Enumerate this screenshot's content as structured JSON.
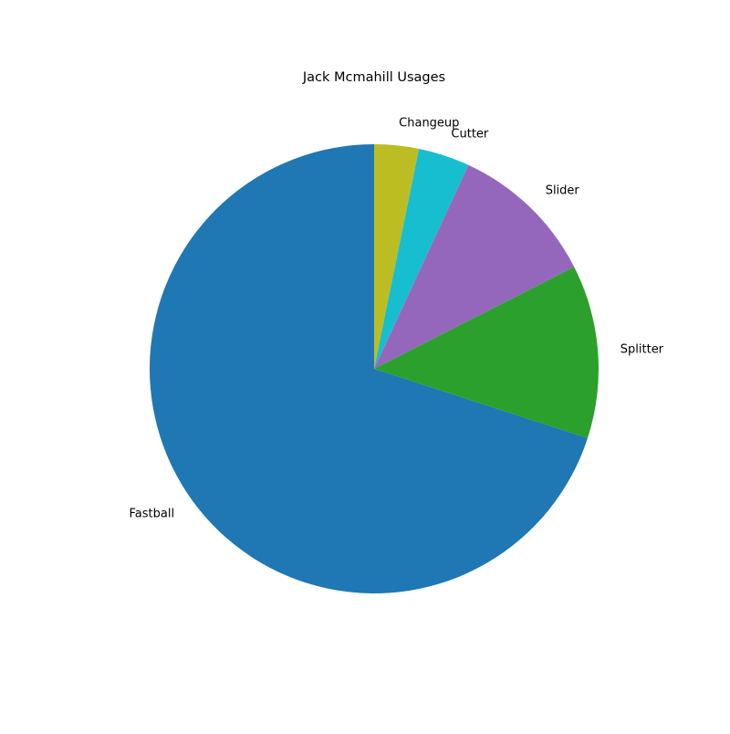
{
  "chart_data": {
    "type": "pie",
    "title": "Jack Mcmahill Usages",
    "start_angle_deg": 90,
    "direction": "clockwise",
    "categories": [
      "Changeup",
      "Cutter",
      "Slider",
      "Splitter",
      "Fastball"
    ],
    "values": [
      3.2,
      3.7,
      10.6,
      12.5,
      70.0
    ],
    "colors": [
      "#bcbd22",
      "#17becf",
      "#9467bd",
      "#2ca02c",
      "#1f77b4"
    ]
  }
}
